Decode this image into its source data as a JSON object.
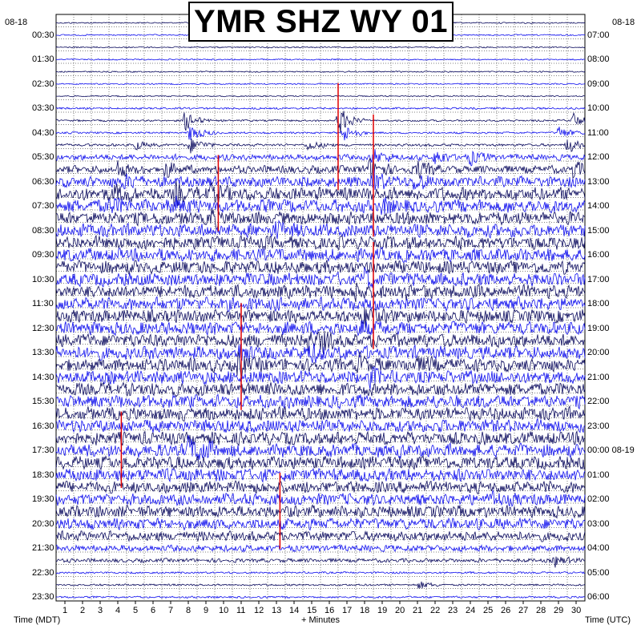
{
  "title": "YMR SHZ WY 01",
  "date_left": "08-18",
  "date_right": "08-18",
  "xlabel_left": "Time (MDT)",
  "xlabel_center": "+ Minutes",
  "xlabel_right": "Time (UTC)",
  "colors": {
    "trace_dark": "#0b0b5e",
    "trace_blue": "#1010ee",
    "event": "#e00000",
    "grid": "#000000",
    "background": "#ffffff"
  },
  "chart_data": {
    "type": "helicorder",
    "title": "YMR SHZ WY 01",
    "xlabel": "+ Minutes",
    "x_ticks": [
      1,
      2,
      3,
      4,
      5,
      6,
      7,
      8,
      9,
      10,
      11,
      12,
      13,
      14,
      15,
      16,
      17,
      18,
      19,
      20,
      21,
      22,
      23,
      24,
      25,
      26,
      27,
      28,
      29,
      30
    ],
    "xlim": [
      0,
      30
    ],
    "rows_count": 48,
    "minutes_per_row": 30,
    "left_axis_label": "Time (MDT)",
    "right_axis_label": "Time (UTC)",
    "left_ticks": [
      "00:30",
      "01:30",
      "02:30",
      "03:30",
      "04:30",
      "05:30",
      "06:30",
      "07:30",
      "08:30",
      "09:30",
      "10:30",
      "11:30",
      "12:30",
      "13:30",
      "14:30",
      "15:30",
      "16:30",
      "17:30",
      "18:30",
      "19:30",
      "20:30",
      "21:30",
      "22:30",
      "23:30"
    ],
    "right_ticks": [
      "07:00",
      "08:00",
      "09:00",
      "10:00",
      "11:00",
      "12:00",
      "13:00",
      "14:00",
      "15:00",
      "16:00",
      "17:00",
      "18:00",
      "19:00",
      "20:00",
      "21:00",
      "22:00",
      "23:00",
      "00:00 08-19",
      "01:00",
      "02:00",
      "03:00",
      "04:00",
      "05:00",
      "06:00"
    ],
    "row_noise_amplitude": [
      0.2,
      0.2,
      0.2,
      0.2,
      0.2,
      0.2,
      0.2,
      0.3,
      0.3,
      0.3,
      0.4,
      0.9,
      1.2,
      1.6,
      2.0,
      2.0,
      2.0,
      2.0,
      2.0,
      2.0,
      2.0,
      2.0,
      2.0,
      2.0,
      2.0,
      2.0,
      2.0,
      2.0,
      2.0,
      2.0,
      2.0,
      2.0,
      2.0,
      2.0,
      2.0,
      2.0,
      2.0,
      2.0,
      1.8,
      1.8,
      1.8,
      1.7,
      1.5,
      1.0,
      0.6,
      0.3,
      0.3,
      0.3
    ],
    "events": [
      {
        "row": 8,
        "minute": 16.0,
        "amp": 4.5
      },
      {
        "row": 8,
        "minute": 7.3,
        "amp": 3.0
      },
      {
        "row": 8,
        "minute": 29.3,
        "amp": 2.2
      },
      {
        "row": 9,
        "minute": 16.3,
        "amp": 2.8
      },
      {
        "row": 9,
        "minute": 7.6,
        "amp": 3.0
      },
      {
        "row": 9,
        "minute": 28.5,
        "amp": 2.0
      },
      {
        "row": 10,
        "minute": 4.5,
        "amp": 1.3
      },
      {
        "row": 10,
        "minute": 7.6,
        "amp": 2.5
      },
      {
        "row": 10,
        "minute": 14.3,
        "amp": 1.6
      },
      {
        "row": 10,
        "minute": 29.0,
        "amp": 2.5
      },
      {
        "row": 11,
        "minute": 18.0,
        "amp": 2.2
      },
      {
        "row": 11,
        "minute": 21.5,
        "amp": 2.0
      },
      {
        "row": 11,
        "minute": 23.5,
        "amp": 2.0
      },
      {
        "row": 12,
        "minute": 3.5,
        "amp": 2.0
      },
      {
        "row": 12,
        "minute": 6.2,
        "amp": 2.0
      },
      {
        "row": 12,
        "minute": 17.8,
        "amp": 3.2
      },
      {
        "row": 12,
        "minute": 20.5,
        "amp": 2.4
      },
      {
        "row": 12,
        "minute": 29.3,
        "amp": 2.0
      },
      {
        "row": 13,
        "minute": 3.8,
        "amp": 1.8
      },
      {
        "row": 13,
        "minute": 18.0,
        "amp": 2.8
      },
      {
        "row": 13,
        "minute": 20.3,
        "amp": 2.2
      },
      {
        "row": 14,
        "minute": 3.3,
        "amp": 2.0
      },
      {
        "row": 14,
        "minute": 6.7,
        "amp": 2.0
      },
      {
        "row": 14,
        "minute": 8.7,
        "amp": 2.3
      },
      {
        "row": 15,
        "minute": 3.0,
        "amp": 1.8
      },
      {
        "row": 15,
        "minute": 6.7,
        "amp": 2.0
      },
      {
        "row": 15,
        "minute": 18.5,
        "amp": 1.6
      },
      {
        "row": 16,
        "minute": 8.8,
        "amp": 2.0
      },
      {
        "row": 17,
        "minute": 12.5,
        "amp": 1.8
      },
      {
        "row": 21,
        "minute": 17.5,
        "amp": 1.9
      },
      {
        "row": 22,
        "minute": 17.0,
        "amp": 1.8
      },
      {
        "row": 22,
        "minute": 19.5,
        "amp": 1.6
      },
      {
        "row": 24,
        "minute": 17.5,
        "amp": 2.4
      },
      {
        "row": 25,
        "minute": 17.3,
        "amp": 2.0
      },
      {
        "row": 26,
        "minute": 14.3,
        "amp": 2.0
      },
      {
        "row": 26,
        "minute": 15.0,
        "amp": 2.0
      },
      {
        "row": 27,
        "minute": 10.3,
        "amp": 2.4
      },
      {
        "row": 27,
        "minute": 14.2,
        "amp": 2.4
      },
      {
        "row": 28,
        "minute": 10.3,
        "amp": 2.6
      },
      {
        "row": 28,
        "minute": 17.2,
        "amp": 1.8
      },
      {
        "row": 28,
        "minute": 20.5,
        "amp": 1.8
      },
      {
        "row": 29,
        "minute": 17.8,
        "amp": 1.8
      },
      {
        "row": 35,
        "minute": 7.5,
        "amp": 2.6
      },
      {
        "row": 35,
        "minute": 8.0,
        "amp": 2.0
      },
      {
        "row": 39,
        "minute": 24.8,
        "amp": 1.6
      },
      {
        "row": 44,
        "minute": 28.3,
        "amp": 1.6
      },
      {
        "row": 46,
        "minute": 20.6,
        "amp": 1.3
      }
    ],
    "red_marks": [
      {
        "row": 8,
        "minute": 16.0,
        "amp": 3.5
      },
      {
        "row": 11,
        "minute": 18.0,
        "amp": 4.0
      },
      {
        "row": 13,
        "minute": 9.2,
        "amp": 2.5
      },
      {
        "row": 21,
        "minute": 18.0,
        "amp": 3.5
      },
      {
        "row": 26,
        "minute": 10.5,
        "amp": 3.5
      },
      {
        "row": 34,
        "minute": 3.7,
        "amp": 2.5
      },
      {
        "row": 39,
        "minute": 12.7,
        "amp": 2.5
      }
    ]
  }
}
